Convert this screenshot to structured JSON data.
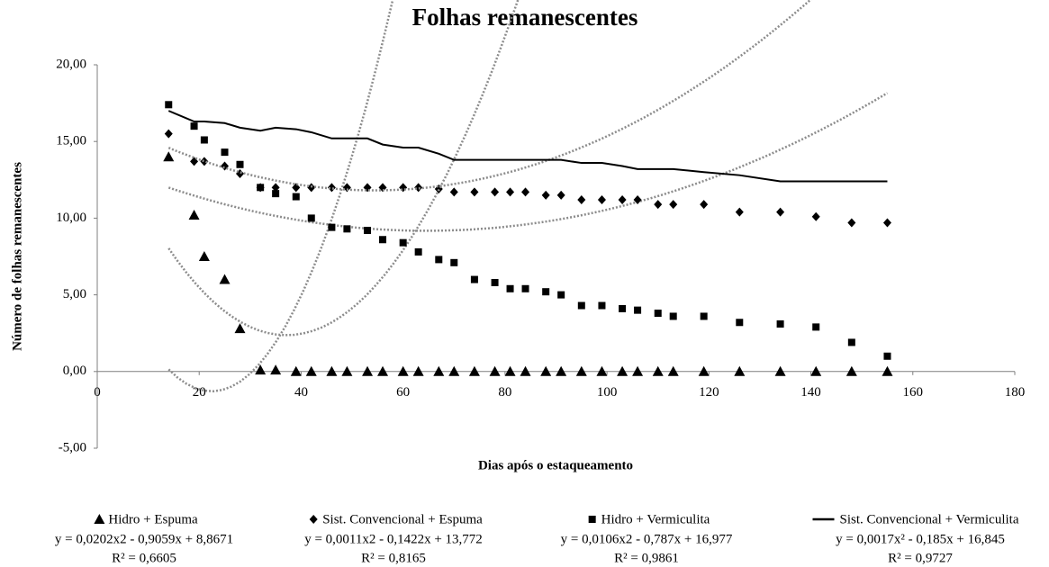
{
  "chart_data": {
    "type": "scatter",
    "title": "Folhas remanescentes",
    "x_label": "Dias após o estaqueamento",
    "y_label": "Número de folhas remanescentes",
    "xlim": [
      0,
      180
    ],
    "xticks": [
      0,
      20,
      40,
      60,
      80,
      100,
      120,
      140,
      160,
      180
    ],
    "ylim": [
      -5,
      20
    ],
    "yticks": [
      {
        "value": -5,
        "label": "-5,00"
      },
      {
        "value": 0,
        "label": "0,00"
      },
      {
        "value": 5,
        "label": "5,00"
      },
      {
        "value": 10,
        "label": "10,00"
      },
      {
        "value": 15,
        "label": "15,00"
      },
      {
        "value": 20,
        "label": "20,00"
      }
    ],
    "grid": false,
    "x": [
      14,
      19,
      21,
      25,
      28,
      32,
      35,
      39,
      42,
      46,
      49,
      53,
      56,
      60,
      63,
      67,
      70,
      74,
      78,
      81,
      84,
      88,
      91,
      95,
      99,
      103,
      106,
      110,
      113,
      119,
      126,
      134,
      141,
      148,
      155
    ],
    "series": [
      {
        "name": "Hidro + Espuma",
        "marker": "triangle",
        "color": "#000000",
        "equation": "y = 0,0202x2 - 0,9059x + 8,8671",
        "r2": "R² = 0,6605",
        "trendline": [
          0.0202,
          -0.9059,
          8.8671
        ],
        "values": [
          14.0,
          10.2,
          7.5,
          6.0,
          2.8,
          0.1,
          0.1,
          0,
          0,
          0,
          0,
          0,
          0,
          0,
          0,
          0,
          0,
          0,
          0,
          0,
          0,
          0,
          0,
          0,
          0,
          0,
          0,
          0,
          0,
          0,
          0,
          0,
          0,
          0,
          0
        ]
      },
      {
        "name": "Sist. Convencional + Espuma",
        "marker": "diamond",
        "color": "#000000",
        "equation": "y = 0,0011x2 - 0,1422x + 13,772",
        "r2": "R² = 0,8165",
        "trendline": [
          0.0011,
          -0.1422,
          13.772
        ],
        "values": [
          15.5,
          13.7,
          13.7,
          13.4,
          12.9,
          12.0,
          12.0,
          12.0,
          12.0,
          12.0,
          12.0,
          12.0,
          12.0,
          12.0,
          12.0,
          11.9,
          11.7,
          11.7,
          11.7,
          11.7,
          11.7,
          11.5,
          11.5,
          11.2,
          11.2,
          11.2,
          11.2,
          10.9,
          10.9,
          10.9,
          10.4,
          10.4,
          10.1,
          9.7,
          9.7
        ]
      },
      {
        "name": "Hidro + Vermiculita",
        "marker": "square",
        "color": "#000000",
        "equation": "y = 0,0106x2 - 0,787x + 16,977",
        "r2": "R² = 0,9861",
        "trendline": [
          0.0106,
          -0.787,
          16.977
        ],
        "values": [
          17.4,
          16.0,
          15.1,
          14.3,
          13.5,
          12.0,
          11.6,
          11.4,
          10.0,
          9.4,
          9.3,
          9.2,
          8.6,
          8.4,
          7.8,
          7.3,
          7.1,
          6.0,
          5.8,
          5.4,
          5.4,
          5.2,
          5.0,
          4.3,
          4.3,
          4.1,
          4.0,
          3.8,
          3.6,
          3.6,
          3.2,
          3.1,
          2.9,
          1.9,
          1.0
        ]
      },
      {
        "name": "Sist. Convencional + Vermiculita",
        "marker": "line",
        "color": "#000000",
        "equation": "y = 0,0017x² - 0,185x + 16,845",
        "r2": "R² = 0,9727",
        "trendline": [
          0.0017,
          -0.185,
          16.845
        ],
        "values": [
          17.0,
          16.3,
          16.3,
          16.2,
          15.9,
          15.7,
          15.9,
          15.8,
          15.6,
          15.2,
          15.2,
          15.2,
          14.8,
          14.6,
          14.6,
          14.2,
          13.8,
          13.8,
          13.8,
          13.8,
          13.8,
          13.8,
          13.8,
          13.6,
          13.6,
          13.4,
          13.2,
          13.2,
          13.2,
          13.0,
          12.8,
          12.4,
          12.4,
          12.4,
          12.4
        ]
      }
    ]
  }
}
